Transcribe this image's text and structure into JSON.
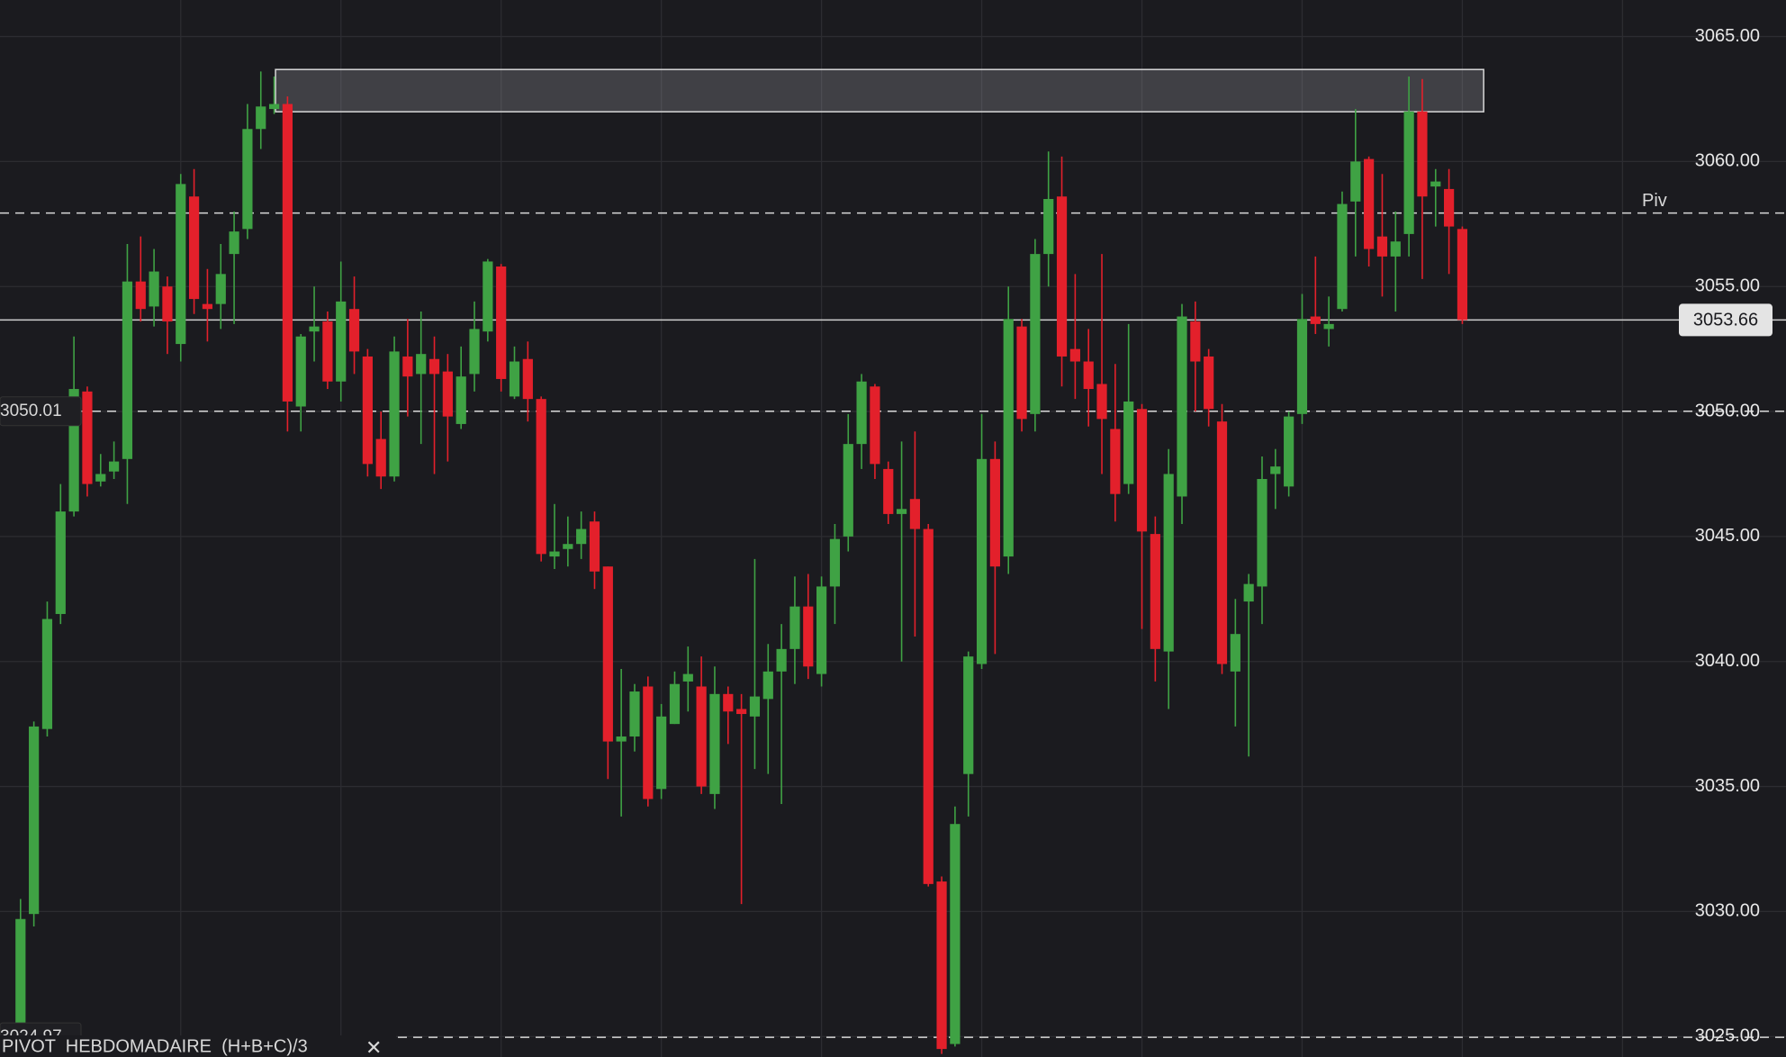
{
  "chart_data": {
    "type": "candlestick",
    "ylim": [
      3024.18,
      3066.46
    ],
    "yticks": [
      {
        "value": 3025,
        "label": "3025.00"
      },
      {
        "value": 3030,
        "label": "3030.00"
      },
      {
        "value": 3035,
        "label": "3035.00"
      },
      {
        "value": 3040,
        "label": "3040.00"
      },
      {
        "value": 3045,
        "label": "3045.00"
      },
      {
        "value": 3050,
        "label": "3050.00"
      },
      {
        "value": 3055,
        "label": "3055.00"
      },
      {
        "value": 3060,
        "label": "3060.00"
      },
      {
        "value": 3065,
        "label": "3065.00"
      }
    ],
    "grid": true,
    "up_color": "#3fa244",
    "down_color": "#e3202b",
    "open": [
      3024.8,
      3029.9,
      3037.3,
      3041.9,
      3046,
      3050.8,
      3047.2,
      3047.6,
      3048.1,
      3055.2,
      3054.2,
      3055,
      3052.7,
      3058.6,
      3054.3,
      3054.3,
      3056.3,
      3057.3,
      3061.3,
      3062.1,
      3062.3,
      3050.2,
      3053.2,
      3053.6,
      3051.2,
      3054.1,
      3052.2,
      3048.9,
      3047.4,
      3052.2,
      3051.5,
      3052.1,
      3051.6,
      3049.5,
      3051.5,
      3053.2,
      3055.8,
      3050.6,
      3052.1,
      3050.5,
      3044.2,
      3044.5,
      3044.7,
      3045.6,
      3043.8,
      3036.8,
      3037,
      3039,
      3034.9,
      3037.5,
      3039.2,
      3039,
      3034.7,
      3038.7,
      3038.1,
      3037.8,
      3038.5,
      3039.6,
      3040.5,
      3042.2,
      3039.5,
      3043,
      3045,
      3048.7,
      3051,
      3047.7,
      3045.9,
      3046.5,
      3045.3,
      3031.2,
      3024.7,
      3035.5,
      3039.9,
      3048.1,
      3044.2,
      3053.4,
      3049.9,
      3056.3,
      3058.6,
      3052.5,
      3052,
      3051.1,
      3049.3,
      3047.1,
      3050.1,
      3045.1,
      3040.4,
      3046.6,
      3053.6,
      3052.2,
      3049.6,
      3039.6,
      3042.4,
      3043,
      3047.5,
      3047,
      3049.9,
      3053.8,
      3053.3,
      3054.1,
      3058.4,
      3060.1,
      3057,
      3056.2,
      3057.1,
      3062,
      3059,
      3058.9,
      3057.3
    ],
    "high": [
      3030.5,
      3037.6,
      3042.4,
      3047.1,
      3053,
      3051,
      3048.3,
      3048.8,
      3056.7,
      3057,
      3056.5,
      3055.4,
      3059.5,
      3059.7,
      3055.7,
      3056.7,
      3058,
      3062.3,
      3063.6,
      3063.4,
      3062.6,
      3053.1,
      3055,
      3054,
      3056,
      3055.4,
      3052.5,
      3050,
      3053,
      3053.7,
      3054,
      3053,
      3052.3,
      3052.6,
      3054.4,
      3056.1,
      3055.9,
      3052.6,
      3052.8,
      3050.6,
      3046.3,
      3045.8,
      3046,
      3046,
      3043.8,
      3039.7,
      3039.1,
      3039.4,
      3038.3,
      3039.6,
      3040.6,
      3040.2,
      3039.8,
      3039,
      3038.7,
      3044.1,
      3040.7,
      3041.5,
      3043.4,
      3043.5,
      3043.4,
      3045.5,
      3049.9,
      3051.5,
      3051.1,
      3048,
      3048.8,
      3049.2,
      3045.5,
      3031.4,
      3034.2,
      3040.4,
      3049.9,
      3048.8,
      3055,
      3053.7,
      3056.9,
      3060.4,
      3060.2,
      3055.5,
      3053.3,
      3056.3,
      3051.9,
      3053.5,
      3050.3,
      3045.8,
      3048.5,
      3054.3,
      3054.4,
      3052.5,
      3050.3,
      3042.5,
      3043.5,
      3048.2,
      3048.5,
      3050,
      3054.7,
      3056.2,
      3054.6,
      3058.8,
      3062.1,
      3060.2,
      3059.5,
      3058,
      3063.4,
      3063.3,
      3059.7,
      3059.7,
      3057.4
    ],
    "low": [
      3024.5,
      3029.4,
      3037,
      3041.5,
      3045.8,
      3046.6,
      3047,
      3047.3,
      3046.3,
      3053.6,
      3053.4,
      3052.3,
      3052,
      3053.9,
      3052.8,
      3053.3,
      3053.5,
      3056.9,
      3060.5,
      3061.9,
      3049.2,
      3049.2,
      3052,
      3050.9,
      3050.4,
      3051.5,
      3047.4,
      3046.9,
      3047.2,
      3049.8,
      3048.7,
      3047.5,
      3048,
      3049.3,
      3050.8,
      3052.8,
      3050.8,
      3050.5,
      3049.6,
      3044,
      3043.7,
      3043.8,
      3044.1,
      3042.9,
      3035.3,
      3033.8,
      3036.4,
      3034.2,
      3034.5,
      3037.5,
      3038,
      3034.7,
      3034.1,
      3036.7,
      3030.3,
      3035.7,
      3035.5,
      3034.3,
      3039.1,
      3039.3,
      3039,
      3041.5,
      3044.4,
      3047.7,
      3047.3,
      3045.5,
      3040,
      3041,
      3031,
      3024.3,
      3024.6,
      3033.8,
      3039.7,
      3040.3,
      3043.5,
      3049.2,
      3049.2,
      3055,
      3051,
      3050.5,
      3049.4,
      3047.5,
      3045.6,
      3046.7,
      3041.3,
      3039.2,
      3038.1,
      3045.5,
      3050,
      3049.4,
      3039.5,
      3037.4,
      3036.2,
      3041.5,
      3046.1,
      3046.6,
      3049.5,
      3053.1,
      3052.6,
      3054,
      3056.2,
      3055.8,
      3054.6,
      3054,
      3056.2,
      3055.3,
      3057.4,
      3055.5,
      3053.5
    ],
    "close": [
      3029.7,
      3037.4,
      3041.7,
      3046,
      3050.9,
      3047.1,
      3047.5,
      3048,
      3055.2,
      3054.1,
      3055.6,
      3053.6,
      3059.1,
      3054.5,
      3054.1,
      3055.5,
      3057.2,
      3061.3,
      3062.2,
      3062.3,
      3050.4,
      3053,
      3053.4,
      3051.2,
      3054.4,
      3052.4,
      3047.9,
      3047.4,
      3052.4,
      3051.4,
      3052.3,
      3051.5,
      3049.8,
      3051.4,
      3053.3,
      3056,
      3051.3,
      3052,
      3050.5,
      3044.3,
      3044.4,
      3044.7,
      3045.3,
      3043.6,
      3036.8,
      3037,
      3038.8,
      3034.5,
      3037.8,
      3039.1,
      3039.5,
      3035,
      3038.7,
      3038,
      3037.9,
      3038.6,
      3039.6,
      3040.5,
      3042.2,
      3039.8,
      3043,
      3044.9,
      3048.7,
      3051.2,
      3047.9,
      3045.9,
      3046.1,
      3045.3,
      3031.1,
      3024.5,
      3033.5,
      3040.2,
      3048.1,
      3043.8,
      3053.7,
      3049.7,
      3056.3,
      3058.5,
      3052.2,
      3052,
      3050.9,
      3049.7,
      3046.7,
      3050.4,
      3045.2,
      3040.5,
      3047.5,
      3053.8,
      3052,
      3050.1,
      3039.9,
      3041.1,
      3043.1,
      3047.3,
      3047.8,
      3049.8,
      3053.7,
      3053.5,
      3053.5,
      3058.3,
      3060,
      3056.5,
      3056.2,
      3056.8,
      3062,
      3058.6,
      3059.2,
      3057.4,
      3053.66
    ],
    "zone": {
      "top": 3063.68,
      "bottom": 3061.99,
      "start": 19.1,
      "end": 109.6
    },
    "levels": [
      {
        "name": "Piv",
        "value": 3057.94
      },
      {
        "value": 3050.01
      },
      {
        "value": 3024.97
      }
    ],
    "indicator": "PIVOT  HEBDOMADAIRE  (H+B+C)/3"
  }
}
